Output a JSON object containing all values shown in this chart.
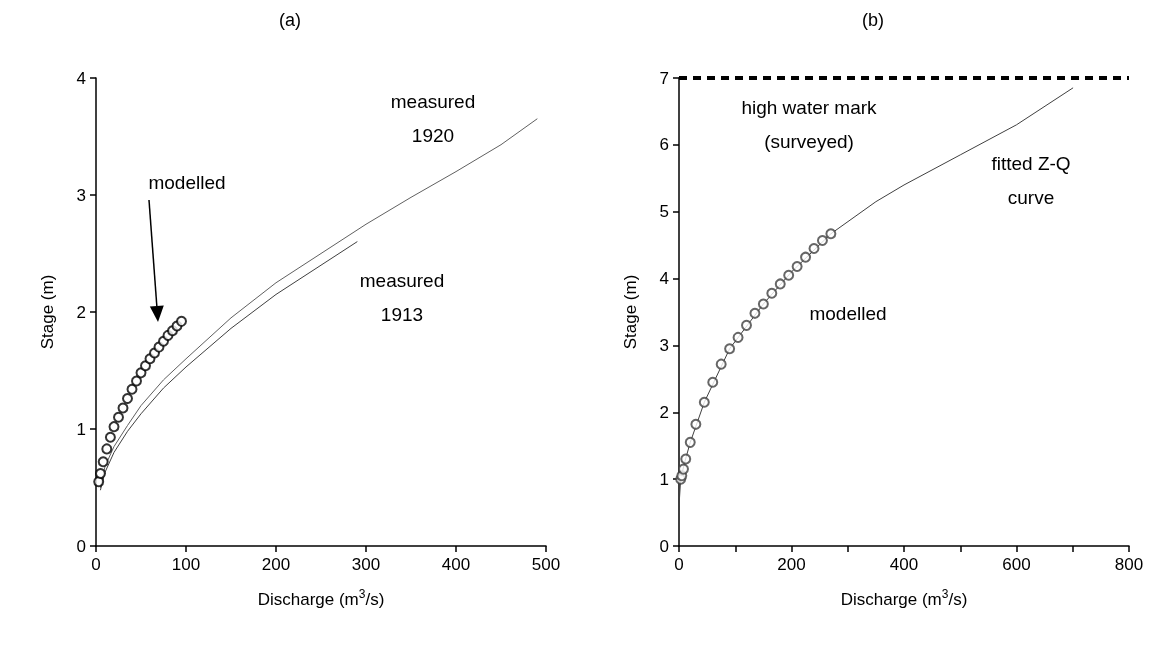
{
  "chart_data": [
    {
      "type": "scatter",
      "title": "(a)",
      "xlabel": "Discharge (m$^{3}$/s)",
      "ylabel": "Stage (m)",
      "xlim": [
        0,
        500
      ],
      "xticks": [
        0,
        100,
        200,
        300,
        400,
        500
      ],
      "ylim": [
        0,
        4
      ],
      "yticks": [
        0,
        1,
        2,
        3,
        4
      ],
      "grid": false,
      "series": [
        {
          "type": "line",
          "color": "#606060",
          "marker": "none",
          "x": [
            5,
            10,
            20,
            35,
            50,
            75,
            100,
            150,
            200,
            250,
            300,
            350,
            400,
            450,
            490
          ],
          "values": [
            0.5,
            0.68,
            0.85,
            1.03,
            1.2,
            1.42,
            1.6,
            1.95,
            2.25,
            2.5,
            2.75,
            2.98,
            3.2,
            3.43,
            3.65
          ]
        },
        {
          "type": "line",
          "color": "#404040",
          "marker": "none",
          "x": [
            5,
            10,
            20,
            35,
            50,
            75,
            100,
            150,
            200,
            250,
            290
          ],
          "values": [
            0.48,
            0.63,
            0.8,
            0.98,
            1.13,
            1.35,
            1.53,
            1.86,
            2.15,
            2.4,
            2.6
          ]
        },
        {
          "color": "#000000",
          "marker": "circle",
          "x": [
            3,
            5,
            8,
            12,
            16,
            20,
            25,
            30,
            35,
            40,
            45,
            50,
            55,
            60,
            65,
            70,
            75,
            80,
            85,
            90,
            95
          ],
          "values": [
            0.55,
            0.62,
            0.72,
            0.83,
            0.93,
            1.02,
            1.1,
            1.18,
            1.26,
            1.34,
            1.41,
            1.48,
            1.54,
            1.6,
            1.65,
            1.7,
            1.75,
            1.8,
            1.84,
            1.88,
            1.92
          ]
        }
      ],
      "annotations": [
        "measured 1920",
        "measured 1913",
        "modelled"
      ]
    },
    {
      "type": "scatter",
      "title": "(b)",
      "xlabel": "Discharge (m$^{3}$/s)",
      "ylabel": "Stage (m)",
      "xlim": [
        0,
        800
      ],
      "xticks": [
        0,
        {
          "value": 100,
          "label": null
        },
        200,
        {
          "value": 300,
          "label": null
        },
        400,
        {
          "value": 500,
          "label": null
        },
        600,
        {
          "value": 700,
          "label": null
        },
        800
      ],
      "ylim": [
        0,
        7
      ],
      "yticks": [
        0,
        1,
        2,
        3,
        4,
        5,
        6,
        7
      ],
      "grid": false,
      "series": [
        {
          "type": "line",
          "color": "#404040",
          "marker": "none",
          "x": [
            0,
            3,
            10,
            20,
            45,
            90,
            150,
            200,
            270,
            350,
            400,
            500,
            600,
            700
          ],
          "values": [
            0.6,
            1.0,
            1.25,
            1.55,
            2.15,
            2.95,
            3.62,
            4.1,
            4.67,
            5.15,
            5.4,
            5.85,
            6.3,
            6.85
          ]
        },
        {
          "color": "#404040",
          "marker": "circle",
          "x": [
            3,
            5,
            8,
            12,
            20,
            30,
            45,
            60,
            75,
            90,
            105,
            120,
            135,
            150,
            165,
            180,
            195,
            210,
            225,
            240,
            255,
            270
          ],
          "values": [
            1.0,
            1.05,
            1.15,
            1.3,
            1.55,
            1.82,
            2.15,
            2.45,
            2.72,
            2.95,
            3.12,
            3.3,
            3.48,
            3.62,
            3.78,
            3.92,
            4.05,
            4.18,
            4.32,
            4.45,
            4.57,
            4.67
          ]
        }
      ],
      "ref_lines": [
        {
          "axis": "y",
          "value": 7,
          "label": "high water mark (surveyed)",
          "color": "#000000",
          "line_style": "dashed"
        }
      ],
      "annotations": [
        "fitted Z-Q curve",
        "modelled"
      ]
    }
  ]
}
